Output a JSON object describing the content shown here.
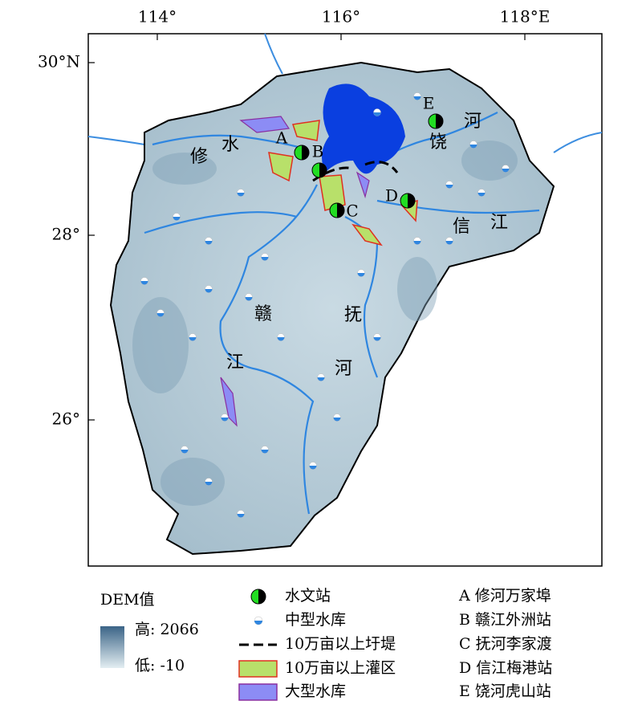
{
  "axes": {
    "top": [
      "114°",
      "116°",
      "118°E"
    ],
    "left": [
      "30°N",
      "28°",
      "26°"
    ]
  },
  "map_labels": [
    "修",
    "水",
    "赣",
    "江",
    "抚",
    "河",
    "信",
    "江",
    "饶",
    "河"
  ],
  "stations": [
    "A",
    "B",
    "C",
    "D",
    "E"
  ],
  "legend": {
    "dem": {
      "title": "DEM值",
      "high": "高: 2066",
      "low": "低: -10"
    },
    "items": [
      "水文站",
      "中型水库",
      "10万亩以上圩堤",
      "10万亩以上灌区",
      "大型水库"
    ],
    "station_names": [
      "A 修河万家埠",
      "B 赣江外洲站",
      "C 抚河李家渡",
      "D 信江梅港站",
      "E 饶河虎山站"
    ]
  }
}
